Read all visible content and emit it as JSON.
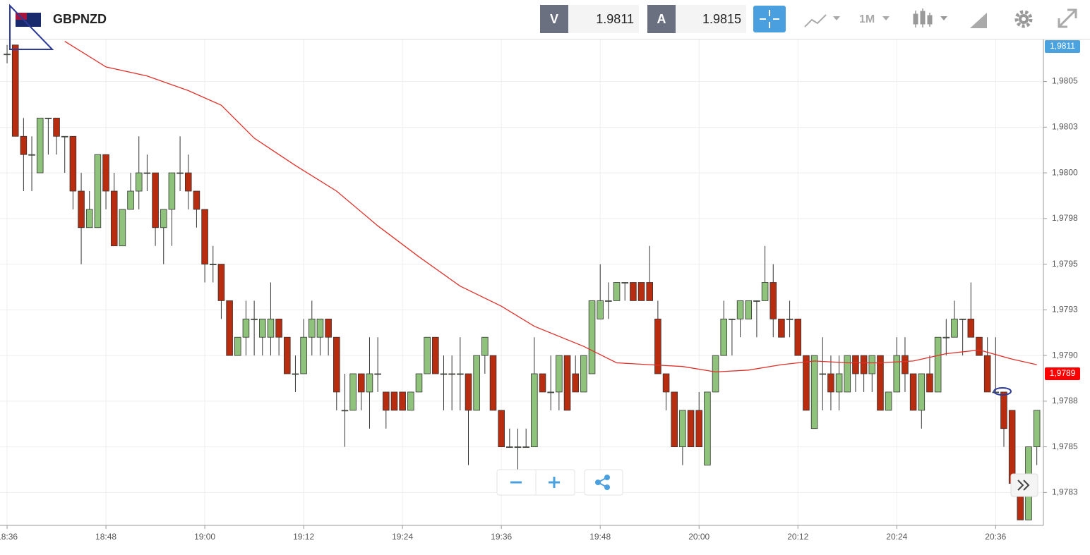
{
  "header": {
    "symbol": "GBPNZD",
    "bid_label": "V",
    "bid": 1.9811,
    "ask_label": "A",
    "ask": 1.9815,
    "timeframe": "1M"
  },
  "chart_data": {
    "type": "candlestick",
    "up_color": "#8fc27a",
    "down_color": "#b82d10",
    "grid": true,
    "open": [
      1.98065,
      1.9807,
      1.9802,
      1.9801,
      1.98,
      1.9803,
      1.9803,
      1.9802,
      1.9802,
      1.9799,
      1.9797,
      1.9797,
      1.9801,
      1.9799,
      1.9796,
      1.9798,
      1.9799,
      1.98,
      1.98,
      1.9797,
      1.9798,
      1.98,
      1.98,
      1.9799,
      1.9798,
      1.9795,
      1.9795,
      1.9793,
      1.979,
      1.9791,
      1.9792,
      1.9791,
      1.9791,
      1.9792,
      1.9791,
      1.9789,
      1.9789,
      1.9791,
      1.9791,
      1.9792,
      1.9791,
      1.9787,
      1.9787,
      1.9789,
      1.9788,
      1.9789,
      1.9788,
      1.9788,
      1.9788,
      1.9787,
      1.9788,
      1.9789,
      1.9791,
      1.9789,
      1.9789,
      1.9789,
      1.9789,
      1.9787,
      1.979,
      1.979,
      1.9787,
      1.9785,
      1.9785,
      1.9785,
      1.9785,
      1.9789,
      1.9788,
      1.9788,
      1.979,
      1.9789,
      1.9788,
      1.9789,
      1.9792,
      1.9793,
      1.9793,
      1.9794,
      1.9794,
      1.9794,
      1.9794,
      1.9792,
      1.9789,
      1.9788,
      1.9785,
      1.9787,
      1.9787,
      1.9784,
      1.9788,
      1.979,
      1.9792,
      1.9792,
      1.9792,
      1.9793,
      1.9793,
      1.9794,
      1.9792,
      1.9792,
      1.9792,
      1.979,
      1.9786,
      1.9789,
      1.9789,
      1.9788,
      1.9788,
      1.979,
      1.979,
      1.9789,
      1.979,
      1.9787,
      1.9788,
      1.979,
      1.9789,
      1.9787,
      1.9789,
      1.9788,
      1.9791,
      1.9791,
      1.9792,
      1.9792,
      1.9791,
      1.979,
      1.9788,
      1.9788,
      1.9787,
      1.9783,
      1.9781,
      1.9785
    ],
    "high": [
      1.9807,
      1.9807,
      1.9803,
      1.9802,
      1.9803,
      1.9803,
      1.9803,
      1.9802,
      1.9802,
      1.98,
      1.9799,
      1.9801,
      1.9801,
      1.98,
      1.9798,
      1.98,
      1.9802,
      1.9801,
      1.98,
      1.9798,
      1.98,
      1.9802,
      1.9801,
      1.9799,
      1.9798,
      1.9796,
      1.9795,
      1.9793,
      1.9791,
      1.9793,
      1.9793,
      1.9792,
      1.9794,
      1.9792,
      1.9791,
      1.979,
      1.9792,
      1.9793,
      1.9792,
      1.9792,
      1.9791,
      1.9789,
      1.9789,
      1.9789,
      1.9791,
      1.9791,
      1.9788,
      1.9788,
      1.9788,
      1.9788,
      1.9789,
      1.9791,
      1.9791,
      1.979,
      1.979,
      1.9791,
      1.9789,
      1.979,
      1.9791,
      1.979,
      1.9787,
      1.9786,
      1.9786,
      1.9786,
      1.9791,
      1.9789,
      1.979,
      1.979,
      1.979,
      1.979,
      1.979,
      1.9793,
      1.9795,
      1.9794,
      1.9794,
      1.9794,
      1.9794,
      1.9794,
      1.9796,
      1.9793,
      1.9789,
      1.9788,
      1.9787,
      1.9787,
      1.9788,
      1.9788,
      1.979,
      1.9793,
      1.9792,
      1.9793,
      1.9793,
      1.9793,
      1.9796,
      1.9795,
      1.9792,
      1.9793,
      1.9792,
      1.979,
      1.979,
      1.9791,
      1.979,
      1.979,
      1.979,
      1.979,
      1.979,
      1.979,
      1.979,
      1.9788,
      1.9791,
      1.9791,
      1.9789,
      1.9789,
      1.979,
      1.9791,
      1.9792,
      1.9793,
      1.9792,
      1.9794,
      1.9791,
      1.9791,
      1.9791,
      1.9788,
      1.9787,
      1.9783,
      1.9785,
      1.9787
    ],
    "low": [
      1.9806,
      1.9802,
      1.9799,
      1.9799,
      1.98,
      1.9801,
      1.9801,
      1.98,
      1.9798,
      1.9795,
      1.9797,
      1.9797,
      1.9798,
      1.9796,
      1.9796,
      1.9798,
      1.9798,
      1.9799,
      1.9796,
      1.9795,
      1.9796,
      1.9799,
      1.9798,
      1.9797,
      1.9794,
      1.9794,
      1.9792,
      1.979,
      1.979,
      1.979,
      1.979,
      1.979,
      1.979,
      1.979,
      1.9789,
      1.9788,
      1.9789,
      1.979,
      1.979,
      1.979,
      1.9787,
      1.9785,
      1.9787,
      1.9787,
      1.9786,
      1.9788,
      1.9786,
      1.9787,
      1.9787,
      1.9787,
      1.9788,
      1.9789,
      1.9789,
      1.9787,
      1.9787,
      1.9787,
      1.9784,
      1.9787,
      1.9789,
      1.9787,
      1.9785,
      1.9785,
      1.97837,
      1.9785,
      1.9785,
      1.9788,
      1.9787,
      1.9787,
      1.9787,
      1.9788,
      1.9788,
      1.9789,
      1.9792,
      1.9792,
      1.9793,
      1.9793,
      1.9793,
      1.9793,
      1.9793,
      1.9789,
      1.9787,
      1.9785,
      1.9784,
      1.9785,
      1.9785,
      1.9784,
      1.9788,
      1.979,
      1.979,
      1.9791,
      1.9792,
      1.9791,
      1.9793,
      1.9791,
      1.9791,
      1.9791,
      1.979,
      1.9787,
      1.9786,
      1.9787,
      1.9787,
      1.9787,
      1.9788,
      1.9788,
      1.9788,
      1.9788,
      1.9787,
      1.9787,
      1.9788,
      1.9788,
      1.9787,
      1.9786,
      1.9788,
      1.9788,
      1.979,
      1.9791,
      1.979,
      1.9791,
      1.979,
      1.9788,
      1.9788,
      1.9785,
      1.9783,
      1.9781,
      1.9781,
      1.9784
    ],
    "close": [
      1.98065,
      1.9802,
      1.9801,
      1.9801,
      1.9803,
      1.9803,
      1.9802,
      1.9802,
      1.9799,
      1.9797,
      1.9798,
      1.9801,
      1.9799,
      1.9796,
      1.9798,
      1.9799,
      1.98,
      1.98,
      1.9797,
      1.9798,
      1.98,
      1.98,
      1.9799,
      1.9798,
      1.9795,
      1.9795,
      1.9793,
      1.979,
      1.9791,
      1.9792,
      1.9792,
      1.9792,
      1.9792,
      1.9791,
      1.9789,
      1.9789,
      1.9791,
      1.9792,
      1.9792,
      1.9791,
      1.9788,
      1.9787,
      1.9789,
      1.9788,
      1.9789,
      1.9789,
      1.9787,
      1.9787,
      1.9787,
      1.9788,
      1.9789,
      1.9791,
      1.9789,
      1.9789,
      1.9789,
      1.9789,
      1.9787,
      1.979,
      1.9791,
      1.9787,
      1.9785,
      1.9785,
      1.9785,
      1.9785,
      1.9789,
      1.9788,
      1.9788,
      1.979,
      1.9787,
      1.9788,
      1.979,
      1.9793,
      1.9793,
      1.9793,
      1.9794,
      1.9794,
      1.9793,
      1.9793,
      1.9793,
      1.9789,
      1.9788,
      1.9785,
      1.9787,
      1.9785,
      1.9785,
      1.9788,
      1.979,
      1.9792,
      1.9792,
      1.9793,
      1.9793,
      1.9793,
      1.9794,
      1.9792,
      1.9791,
      1.9792,
      1.979,
      1.9787,
      1.979,
      1.9789,
      1.9788,
      1.9789,
      1.979,
      1.9789,
      1.9789,
      1.979,
      1.9787,
      1.9788,
      1.979,
      1.9789,
      1.9787,
      1.9789,
      1.9788,
      1.9791,
      1.9791,
      1.9792,
      1.9792,
      1.9791,
      1.979,
      1.9788,
      1.9788,
      1.9786,
      1.9783,
      1.9781,
      1.9785,
      1.9787
    ],
    "ma": {
      "color": "#e0302a",
      "x": [
        7,
        12,
        17,
        22,
        26,
        30,
        35,
        40,
        45,
        50,
        55,
        60,
        64,
        70,
        74,
        78,
        82,
        86,
        90,
        94,
        98,
        102,
        106,
        110,
        114,
        118,
        122,
        125
      ],
      "values": [
        1.98072,
        1.98058,
        1.98053,
        1.98045,
        1.98037,
        1.98019,
        1.98004,
        1.9799,
        1.97971,
        1.97954,
        1.97938,
        1.97927,
        1.97916,
        1.97905,
        1.97896,
        1.97895,
        1.97894,
        1.97891,
        1.97892,
        1.97895,
        1.97897,
        1.97896,
        1.97896,
        1.97897,
        1.97901,
        1.97903,
        1.97898,
        1.97895
      ]
    },
    "xlim": [
      -0.86,
      125.8
    ],
    "xticks": [
      {
        "value": 0,
        "label": "18:36"
      },
      {
        "value": 12,
        "label": "18:48"
      },
      {
        "value": 24,
        "label": "19:00"
      },
      {
        "value": 36,
        "label": "19:12"
      },
      {
        "value": 48,
        "label": "19:24"
      },
      {
        "value": 60,
        "label": "19:36"
      },
      {
        "value": 72,
        "label": "19:48"
      },
      {
        "value": 84,
        "label": "20:00"
      },
      {
        "value": 96,
        "label": "20:12"
      },
      {
        "value": 108,
        "label": "20:24"
      },
      {
        "value": 120,
        "label": "20:36"
      }
    ],
    "ylim": [
      1.97807,
      1.98073
    ],
    "yticks": [
      {
        "value": 1.9805,
        "label": "1,9805"
      },
      {
        "value": 1.98025,
        "label": "1,9803"
      },
      {
        "value": 1.98,
        "label": "1,9800"
      },
      {
        "value": 1.97975,
        "label": "1,9798"
      },
      {
        "value": 1.9795,
        "label": "1,9795"
      },
      {
        "value": 1.97925,
        "label": "1,9793"
      },
      {
        "value": 1.979,
        "label": "1,9790"
      },
      {
        "value": 1.97875,
        "label": "1,9788"
      },
      {
        "value": 1.9785,
        "label": "1,9785"
      },
      {
        "value": 1.97825,
        "label": "1,9783"
      }
    ],
    "price_markers": [
      {
        "value": 1.9811,
        "label": "1,9811",
        "color": "#4aa3df"
      },
      {
        "value": 1.9789,
        "label": "1,9789",
        "color": "#ff0000"
      }
    ]
  }
}
